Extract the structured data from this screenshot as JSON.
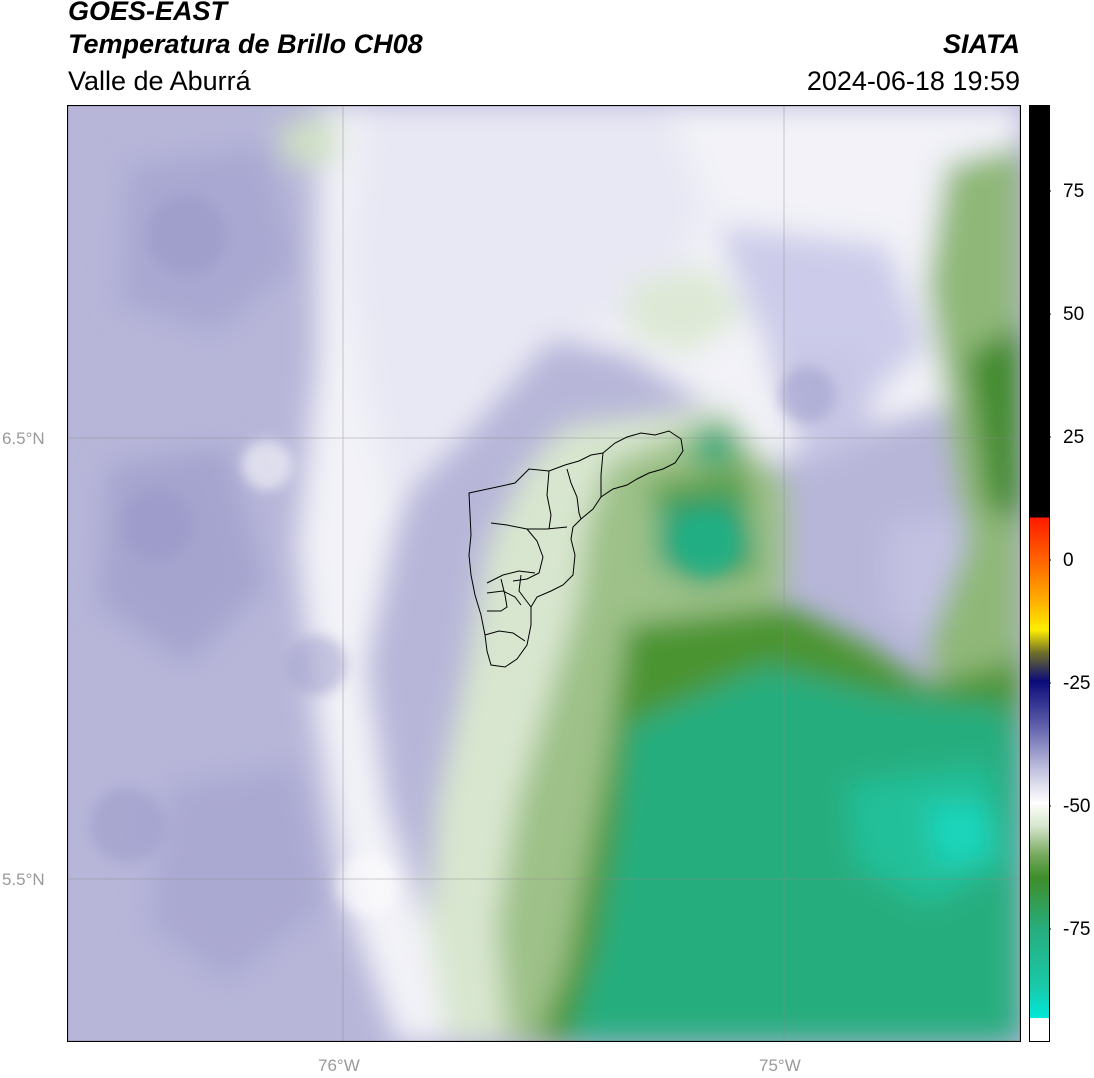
{
  "header": {
    "satellite": "GOES-EAST",
    "product": "Temperatura de Brillo CH08",
    "region": "Valle de Aburrá",
    "brand": "SIATA",
    "timestamp": "2024-06-18 19:59"
  },
  "map": {
    "lat_labels": [
      "6.5°N",
      "5.5°N"
    ],
    "lon_labels": [
      "76°W",
      "75°W"
    ]
  },
  "colorbar": {
    "ticks": [
      "75",
      "50",
      "25",
      "0",
      "-25",
      "-50",
      "-75"
    ],
    "colors": {
      "black": "#000000",
      "red": "#ff1a00",
      "orange": "#ff9a00",
      "yellow": "#ffee00",
      "olive": "#6e6e2a",
      "navy": "#0a0a7a",
      "lavender": "#8f8fc2",
      "white": "#ffffff",
      "green": "#3e8e2a",
      "teal": "#1fb58a",
      "cyan": "#00e8d8"
    }
  }
}
